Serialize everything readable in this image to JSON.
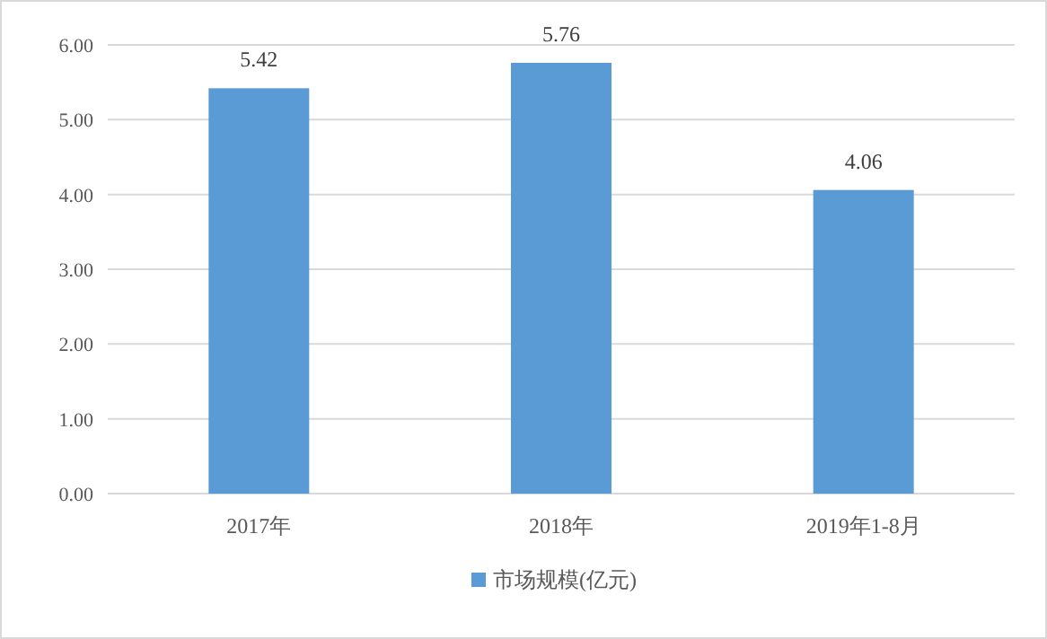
{
  "chart_data": {
    "type": "bar",
    "categories": [
      "2017年",
      "2018年",
      "2019年1-8月"
    ],
    "series": [
      {
        "name": "市场规模(亿元)",
        "color": "#5b9bd5",
        "values": [
          5.42,
          5.76,
          4.06
        ]
      }
    ],
    "ylim": [
      0,
      6
    ],
    "yticks": [
      {
        "value": 0,
        "label": "0.00"
      },
      {
        "value": 1,
        "label": "1.00"
      },
      {
        "value": 2,
        "label": "2.00"
      },
      {
        "value": 3,
        "label": "3.00"
      },
      {
        "value": 4,
        "label": "4.00"
      },
      {
        "value": 5,
        "label": "5.00"
      },
      {
        "value": 6,
        "label": "6.00"
      }
    ],
    "grid": "y",
    "legend": "bottom",
    "data_labels": true
  }
}
